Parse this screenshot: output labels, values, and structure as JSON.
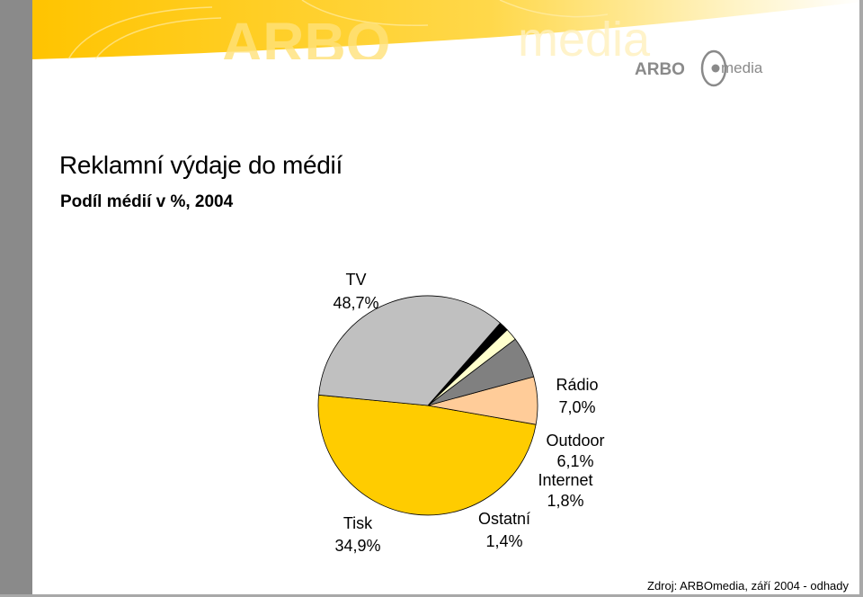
{
  "brand": {
    "logo_arbo": "ARBO",
    "logo_media": "media",
    "watermark_arbo": "ARBO",
    "watermark_media": "media"
  },
  "slide": {
    "title": "Reklamní výdaje do médií",
    "subtitle": "Podíl médií v %, 2004",
    "source": "Zdroj:  ARBOmedia,  září 2004 - odhady"
  },
  "colors": {
    "tv": "#FFCC00",
    "radio": "#FFCC99",
    "outdoor": "#808080",
    "internet": "#FFFFCC",
    "ostatni": "#000000",
    "tisk": "#C0C0C0",
    "banner": "#FFCC00",
    "logo_grey": "#8a8a8a"
  },
  "chart_data": {
    "type": "pie",
    "title": "",
    "start_angle_deg": 185.5,
    "slices": [
      {
        "label": "TV",
        "value_label": "48,7%",
        "value": 48.7,
        "color": "#FFCC00"
      },
      {
        "label": "Rádio",
        "value_label": "7,0%",
        "value": 7.0,
        "color": "#FFCC99"
      },
      {
        "label": "Outdoor",
        "value_label": "6,1%",
        "value": 6.1,
        "color": "#808080"
      },
      {
        "label": "Internet",
        "value_label": "1,8%",
        "value": 1.8,
        "color": "#FFFFCC"
      },
      {
        "label": "Ostatní",
        "value_label": "1,4%",
        "value": 1.4,
        "color": "#000000"
      },
      {
        "label": "Tisk",
        "value_label": "34,9%",
        "value": 34.9,
        "color": "#C0C0C0"
      }
    ]
  }
}
